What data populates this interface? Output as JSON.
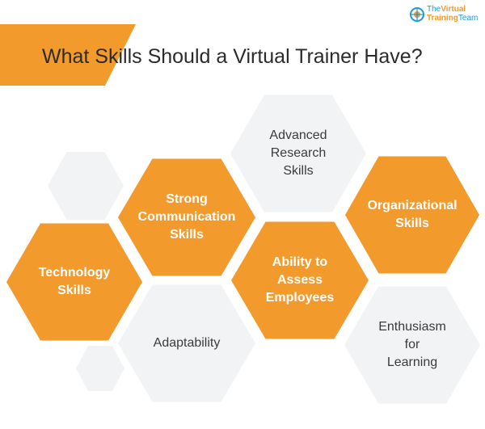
{
  "title": "What Skills Should a Virtual Trainer Have?",
  "logo": {
    "line1_pre": "The",
    "line1_main": "Virtual",
    "line2_main": "Training",
    "line2_post": "Team"
  },
  "colors": {
    "accent_orange": "#F39A2C",
    "hex_gray": "#F1F3F4",
    "title_text": "#2B2B2B",
    "logo_blue": "#1B9BD7",
    "logo_orange": "#F39A2C"
  },
  "skills": [
    {
      "id": "technology",
      "label": "Technology\nSkills",
      "style": "orange"
    },
    {
      "id": "communication",
      "label": "Strong\nCommunication\nSkills",
      "style": "orange"
    },
    {
      "id": "research",
      "label": "Advanced\nResearch\nSkills",
      "style": "gray"
    },
    {
      "id": "organizational",
      "label": "Organizational\nSkills",
      "style": "orange"
    },
    {
      "id": "assess",
      "label": "Ability to\nAssess\nEmployees",
      "style": "orange"
    },
    {
      "id": "adaptability",
      "label": "Adaptability",
      "style": "gray"
    },
    {
      "id": "enthusiasm",
      "label": "Enthusiasm\nfor\nLearning",
      "style": "gray"
    }
  ]
}
